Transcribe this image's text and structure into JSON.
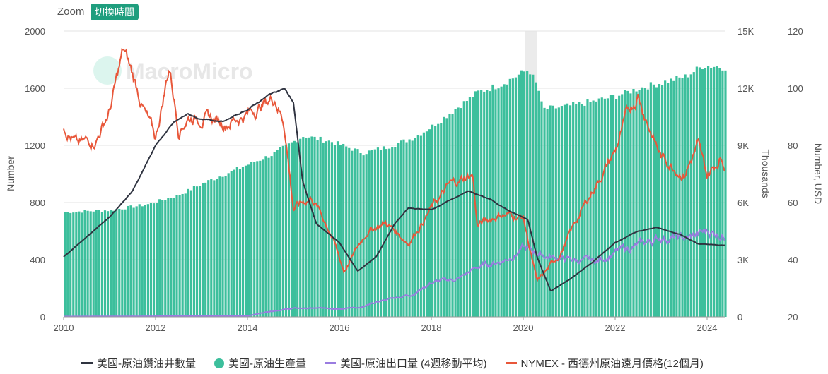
{
  "toolbar": {
    "zoom_label": "Zoom",
    "switch_time_label": "切換時間"
  },
  "watermark": "MacroMicro",
  "colors": {
    "rigs": "#2f3340",
    "production": "#3cbf9c",
    "exports": "#9a7ce0",
    "price": "#e8573a",
    "accent": "#1f9e7e"
  },
  "chart_data": {
    "type": "bar+line",
    "x_ticks": [
      "2010",
      "2012",
      "2014",
      "2016",
      "2018",
      "2020",
      "2022",
      "2024"
    ],
    "xlim": [
      2010,
      2024.4
    ],
    "axes": {
      "left": {
        "label": "Number",
        "ticks": [
          "0",
          "400",
          "800",
          "1200",
          "1600",
          "2000"
        ],
        "range": [
          0,
          2000
        ]
      },
      "right1": {
        "label": "Thousands",
        "ticks": [
          "0",
          "3K",
          "6K",
          "9K",
          "12K",
          "15K"
        ],
        "range": [
          0,
          15
        ]
      },
      "right2": {
        "label": "Number, USD",
        "ticks": [
          "20",
          "40",
          "60",
          "80",
          "100",
          "120"
        ],
        "range": [
          20,
          120
        ]
      }
    },
    "series": [
      {
        "name": "美國-原油鑽油井數量",
        "axis": "left",
        "kind": "line",
        "points": [
          [
            2010,
            420
          ],
          [
            2010.5,
            560
          ],
          [
            2011,
            700
          ],
          [
            2011.5,
            880
          ],
          [
            2012,
            1200
          ],
          [
            2012.4,
            1360
          ],
          [
            2012.7,
            1420
          ],
          [
            2013,
            1380
          ],
          [
            2013.5,
            1370
          ],
          [
            2014,
            1450
          ],
          [
            2014.5,
            1560
          ],
          [
            2014.8,
            1600
          ],
          [
            2015,
            1500
          ],
          [
            2015.2,
            950
          ],
          [
            2015.5,
            650
          ],
          [
            2016,
            520
          ],
          [
            2016.4,
            320
          ],
          [
            2016.8,
            420
          ],
          [
            2017.2,
            650
          ],
          [
            2017.5,
            760
          ],
          [
            2018,
            750
          ],
          [
            2018.8,
            880
          ],
          [
            2019.3,
            820
          ],
          [
            2019.7,
            740
          ],
          [
            2020.1,
            680
          ],
          [
            2020.3,
            420
          ],
          [
            2020.6,
            180
          ],
          [
            2021,
            260
          ],
          [
            2021.5,
            380
          ],
          [
            2022,
            520
          ],
          [
            2022.5,
            600
          ],
          [
            2022.9,
            625
          ],
          [
            2023.4,
            580
          ],
          [
            2023.8,
            510
          ],
          [
            2024.4,
            500
          ]
        ]
      },
      {
        "name": "美國-原油生產量",
        "axis": "right1",
        "kind": "bar",
        "points": [
          [
            2010,
            5.5
          ],
          [
            2011,
            5.6
          ],
          [
            2011.8,
            5.9
          ],
          [
            2012.5,
            6.4
          ],
          [
            2013,
            7.0
          ],
          [
            2013.8,
            7.8
          ],
          [
            2014.5,
            8.5
          ],
          [
            2015.2,
            9.5
          ],
          [
            2015.8,
            9.2
          ],
          [
            2016.5,
            8.6
          ],
          [
            2017,
            8.9
          ],
          [
            2017.6,
            9.4
          ],
          [
            2018,
            10.0
          ],
          [
            2018.5,
            10.9
          ],
          [
            2019,
            11.8
          ],
          [
            2019.5,
            12.2
          ],
          [
            2020.1,
            13.0
          ],
          [
            2020.3,
            12.0
          ],
          [
            2020.4,
            10.9
          ],
          [
            2020.8,
            11.0
          ],
          [
            2021.5,
            11.3
          ],
          [
            2022,
            11.6
          ],
          [
            2022.5,
            12.0
          ],
          [
            2023,
            12.3
          ],
          [
            2023.5,
            12.6
          ],
          [
            2023.9,
            13.2
          ],
          [
            2024.4,
            13.1
          ]
        ]
      },
      {
        "name": "美國-原油出口量 (4週移動平均)",
        "axis": "right1",
        "kind": "line",
        "points": [
          [
            2010,
            0.02
          ],
          [
            2014,
            0.05
          ],
          [
            2014.5,
            0.3
          ],
          [
            2015,
            0.45
          ],
          [
            2016,
            0.45
          ],
          [
            2016.5,
            0.5
          ],
          [
            2017,
            0.9
          ],
          [
            2017.6,
            1.2
          ],
          [
            2018,
            1.8
          ],
          [
            2018.6,
            2.0
          ],
          [
            2019,
            2.6
          ],
          [
            2019.6,
            3.0
          ],
          [
            2020,
            3.6
          ],
          [
            2020.5,
            3.2
          ],
          [
            2021,
            3.0
          ],
          [
            2021.6,
            2.9
          ],
          [
            2022,
            3.4
          ],
          [
            2022.6,
            3.8
          ],
          [
            2023,
            4.2
          ],
          [
            2023.6,
            4.1
          ],
          [
            2024,
            4.5
          ],
          [
            2024.4,
            4.3
          ]
        ]
      },
      {
        "name": "NYMEX - 西德州原油遠月價格(12個月)",
        "axis": "right2",
        "kind": "line",
        "points": [
          [
            2010,
            87
          ],
          [
            2010.3,
            80
          ],
          [
            2010.7,
            82
          ],
          [
            2011,
            92
          ],
          [
            2011.3,
            113
          ],
          [
            2011.6,
            100
          ],
          [
            2011.8,
            90
          ],
          [
            2012,
            82
          ],
          [
            2012.3,
            108
          ],
          [
            2012.5,
            86
          ],
          [
            2012.7,
            90
          ],
          [
            2013,
            90
          ],
          [
            2013.5,
            88
          ],
          [
            2014,
            91
          ],
          [
            2014.6,
            97
          ],
          [
            2014.8,
            88
          ],
          [
            2015,
            58
          ],
          [
            2015.4,
            62
          ],
          [
            2015.8,
            50
          ],
          [
            2016.1,
            36
          ],
          [
            2016.6,
            50
          ],
          [
            2017,
            53
          ],
          [
            2017.5,
            46
          ],
          [
            2018,
            58
          ],
          [
            2018.4,
            66
          ],
          [
            2018.9,
            70
          ],
          [
            2019,
            52
          ],
          [
            2019.5,
            56
          ],
          [
            2020,
            55
          ],
          [
            2020.3,
            32
          ],
          [
            2020.8,
            42
          ],
          [
            2021.2,
            55
          ],
          [
            2021.5,
            64
          ],
          [
            2022,
            78
          ],
          [
            2022.3,
            92
          ],
          [
            2022.5,
            98
          ],
          [
            2022.8,
            84
          ],
          [
            2023,
            76
          ],
          [
            2023.5,
            70
          ],
          [
            2023.8,
            80
          ],
          [
            2024,
            69
          ],
          [
            2024.3,
            76
          ],
          [
            2024.4,
            73
          ]
        ]
      }
    ]
  }
}
